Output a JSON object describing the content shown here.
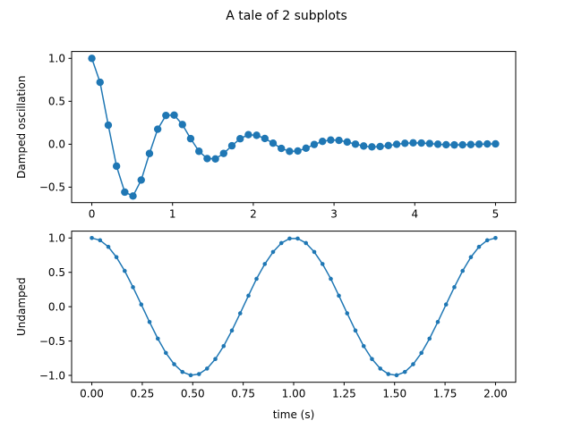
{
  "figure": {
    "suptitle": "A tale of 2 subplots"
  },
  "colors": {
    "series": "#1f77b4",
    "axis": "#000000",
    "background": "#ffffff"
  },
  "chart_data": [
    {
      "type": "line",
      "name": "top-subplot",
      "title": "",
      "xlabel": "",
      "ylabel": "Damped oscillation",
      "xlim": [
        -0.25,
        5.25
      ],
      "ylim": [
        -0.68,
        1.08
      ],
      "xticks": [
        0,
        1,
        2,
        3,
        4,
        5
      ],
      "xtick_labels": [
        "0",
        "1",
        "2",
        "3",
        "4",
        "5"
      ],
      "yticks": [
        -0.5,
        0.0,
        0.5,
        1.0
      ],
      "ytick_labels": [
        "−0.5",
        "0.0",
        "0.5",
        "1.0"
      ],
      "marker": "circle-large",
      "grid": false,
      "series": [
        {
          "x": [
            0.0,
            0.102,
            0.204,
            0.306,
            0.408,
            0.51,
            0.612,
            0.714,
            0.816,
            0.918,
            1.02,
            1.122,
            1.224,
            1.327,
            1.429,
            1.531,
            1.633,
            1.735,
            1.837,
            1.939,
            2.041,
            2.143,
            2.245,
            2.347,
            2.449,
            2.551,
            2.653,
            2.755,
            2.857,
            2.959,
            3.061,
            3.163,
            3.265,
            3.367,
            3.469,
            3.571,
            3.673,
            3.776,
            3.878,
            3.98,
            4.082,
            4.184,
            4.286,
            4.388,
            4.49,
            4.592,
            4.694,
            4.796,
            4.898,
            5.0
          ],
          "y": [
            1.0,
            0.721,
            0.222,
            -0.255,
            -0.558,
            -0.603,
            -0.417,
            -0.108,
            0.175,
            0.335,
            0.339,
            0.229,
            0.065,
            -0.082,
            -0.167,
            -0.171,
            -0.107,
            -0.018,
            0.064,
            0.111,
            0.104,
            0.067,
            0.012,
            -0.049,
            -0.083,
            -0.079,
            -0.046,
            -0.003,
            0.033,
            0.049,
            0.045,
            0.026,
            0.001,
            -0.021,
            -0.031,
            -0.027,
            -0.015,
            -0.001,
            0.011,
            0.016,
            0.014,
            0.008,
            0.0,
            -0.006,
            -0.008,
            -0.007,
            -0.004,
            0.0,
            0.003,
            0.004
          ]
        }
      ]
    },
    {
      "type": "line",
      "name": "bottom-subplot",
      "title": "",
      "xlabel": "time (s)",
      "ylabel": "Undamped",
      "xlim": [
        -0.1,
        2.1
      ],
      "ylim": [
        -1.1,
        1.1
      ],
      "xticks": [
        0.0,
        0.25,
        0.5,
        0.75,
        1.0,
        1.25,
        1.5,
        1.75,
        2.0
      ],
      "xtick_labels": [
        "0.00",
        "0.25",
        "0.50",
        "0.75",
        "1.00",
        "1.25",
        "1.50",
        "1.75",
        "2.00"
      ],
      "yticks": [
        -1.0,
        -0.5,
        0.0,
        0.5,
        1.0
      ],
      "ytick_labels": [
        "−1.0",
        "−0.5",
        "0.0",
        "0.5",
        "1.0"
      ],
      "marker": "circle-small",
      "grid": false,
      "series": [
        {
          "x": [
            0.0,
            0.041,
            0.082,
            0.122,
            0.163,
            0.204,
            0.245,
            0.286,
            0.327,
            0.367,
            0.408,
            0.449,
            0.49,
            0.531,
            0.571,
            0.612,
            0.653,
            0.694,
            0.735,
            0.776,
            0.816,
            0.857,
            0.898,
            0.939,
            0.98,
            1.02,
            1.061,
            1.102,
            1.143,
            1.184,
            1.224,
            1.265,
            1.306,
            1.347,
            1.388,
            1.429,
            1.469,
            1.51,
            1.551,
            1.592,
            1.633,
            1.673,
            1.714,
            1.755,
            1.796,
            1.837,
            1.878,
            1.918,
            1.959,
            2.0
          ],
          "y": [
            1.0,
            0.967,
            0.871,
            0.721,
            0.521,
            0.284,
            0.032,
            -0.223,
            -0.465,
            -0.673,
            -0.838,
            -0.95,
            -0.998,
            -0.981,
            -0.901,
            -0.762,
            -0.574,
            -0.347,
            -0.097,
            0.16,
            0.406,
            0.621,
            0.797,
            0.926,
            0.992,
            0.992,
            0.926,
            0.797,
            0.621,
            0.406,
            0.16,
            -0.097,
            -0.347,
            -0.574,
            -0.762,
            -0.901,
            -0.981,
            -0.998,
            -0.95,
            -0.838,
            -0.673,
            -0.465,
            -0.223,
            0.032,
            0.284,
            0.521,
            0.721,
            0.871,
            0.967,
            1.0
          ]
        }
      ]
    }
  ]
}
